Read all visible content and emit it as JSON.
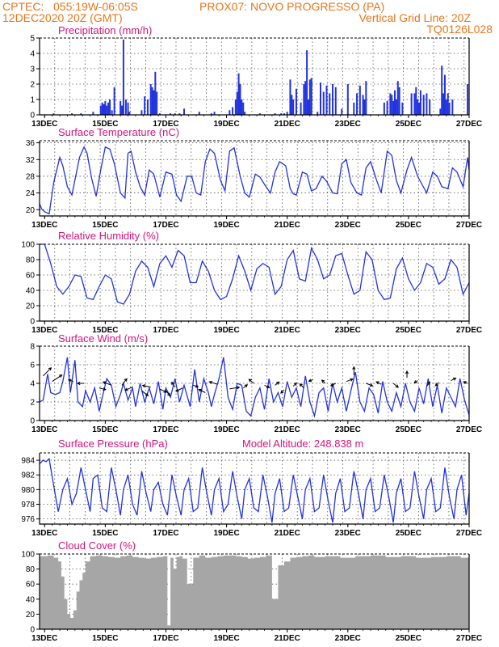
{
  "header": {
    "line1_left": "CPTEC:   055:19W-06:05S",
    "line1_right": "PROX07: NOVO PROGRESSO (PA)",
    "line2_left": "12DEC2020 20Z (GMT)",
    "line2_right": "Vertical Grid Line: 20Z",
    "line3_right": "TQ0126L028"
  },
  "colors": {
    "header": "#e8761b",
    "title": "#d4147c",
    "series": "#2233dd",
    "cloud": "#a6a6a6"
  },
  "x_axis": {
    "labels": [
      "13DEC",
      "15DEC",
      "17DEC",
      "19DEC",
      "21DEC",
      "23DEC",
      "25DEC",
      "27DEC"
    ],
    "start_day": 12.833,
    "end_day": 27.0
  },
  "chart_data": [
    {
      "id": "precip",
      "type": "bar",
      "title": "Precipitation (mm/h)",
      "ylim": [
        0,
        5
      ],
      "yticks": [
        0,
        1,
        2,
        3,
        4,
        5
      ],
      "x": [
        13.3,
        13.9,
        14.2,
        14.6,
        14.85,
        14.9,
        14.95,
        15.0,
        15.05,
        15.1,
        15.15,
        15.22,
        15.3,
        15.5,
        15.55,
        15.6,
        15.68,
        15.75,
        15.8,
        16.2,
        16.3,
        16.4,
        16.5,
        16.55,
        16.6,
        16.65,
        16.7,
        16.8,
        17.15,
        17.3,
        17.45,
        17.6,
        18.1,
        18.5,
        18.6,
        19.1,
        19.2,
        19.3,
        19.35,
        19.4,
        19.45,
        19.5,
        19.55,
        19.6,
        20.1,
        20.6,
        20.8,
        20.9,
        21.0,
        21.1,
        21.15,
        21.2,
        21.3,
        21.45,
        21.55,
        21.6,
        21.65,
        21.7,
        21.75,
        21.8,
        22.0,
        22.1,
        22.2,
        22.3,
        22.4,
        22.5,
        22.6,
        22.8,
        23.0,
        23.2,
        23.3,
        23.4,
        23.5,
        23.55,
        23.6,
        24.2,
        24.3,
        24.4,
        24.45,
        24.5,
        24.55,
        24.6,
        24.65,
        24.7,
        24.8,
        25.1,
        25.2,
        25.25,
        25.3,
        25.35,
        25.4,
        25.5,
        25.6,
        25.7,
        26.05,
        26.1,
        26.15,
        26.2,
        26.25,
        26.3,
        26.35,
        26.45,
        26.95
      ],
      "values": [
        0.1,
        0.1,
        0.1,
        0.2,
        0.6,
        0.8,
        0.7,
        0.9,
        0.6,
        0.8,
        1.0,
        0.3,
        1.8,
        0.9,
        0.6,
        4.9,
        1.0,
        0.8,
        0.2,
        0.3,
        1.2,
        1.0,
        2.0,
        1.8,
        1.6,
        2.8,
        1.5,
        0.1,
        0.1,
        0.1,
        0.1,
        0.4,
        0.2,
        0.1,
        0.2,
        0.3,
        0.5,
        1.0,
        1.5,
        2.7,
        2.0,
        1.0,
        0.8,
        0.2,
        0.1,
        0.1,
        0.1,
        0.1,
        0.2,
        2.3,
        1.3,
        1.0,
        1.7,
        0.8,
        2.0,
        2.2,
        4.2,
        1.0,
        2.3,
        2.4,
        0.2,
        2.1,
        1.5,
        1.9,
        1.4,
        2.0,
        1.8,
        0.4,
        2.0,
        0.8,
        1.4,
        1.9,
        1.3,
        1.0,
        2.2,
        0.8,
        0.9,
        1.4,
        1.3,
        0.9,
        1.6,
        1.0,
        2.2,
        1.8,
        0.8,
        1.4,
        1.4,
        1.8,
        1.0,
        0.8,
        1.6,
        1.3,
        1.4,
        1.0,
        0.4,
        3.2,
        1.4,
        2.6,
        1.0,
        1.4,
        0.8,
        1.0,
        2.0
      ]
    },
    {
      "id": "temp",
      "type": "line",
      "title": "Surface Temperature (nC)",
      "ylim": [
        18.5,
        36.5
      ],
      "yticks": [
        20,
        24,
        28,
        32,
        36
      ],
      "x": [
        12.83,
        12.9,
        13.0,
        13.15,
        13.3,
        13.5,
        13.6,
        13.75,
        13.9,
        14.15,
        14.3,
        14.4,
        14.55,
        14.7,
        14.85,
        15.0,
        15.15,
        15.3,
        15.5,
        15.65,
        15.75,
        15.85,
        16.0,
        16.15,
        16.3,
        16.45,
        16.6,
        16.8,
        17.0,
        17.2,
        17.35,
        17.5,
        17.7,
        17.85,
        18.0,
        18.15,
        18.3,
        18.45,
        18.6,
        18.8,
        18.95,
        19.1,
        19.25,
        19.45,
        19.6,
        19.75,
        19.95,
        20.1,
        20.3,
        20.45,
        20.6,
        20.75,
        20.95,
        21.1,
        21.2,
        21.3,
        21.5,
        21.65,
        21.8,
        21.95,
        22.15,
        22.3,
        22.5,
        22.65,
        22.8,
        22.95,
        23.1,
        23.3,
        23.45,
        23.6,
        23.75,
        23.95,
        24.1,
        24.3,
        24.45,
        24.6,
        24.75,
        24.95,
        25.1,
        25.3,
        25.45,
        25.6,
        25.8,
        25.95,
        26.1,
        26.3,
        26.45,
        26.6,
        26.8,
        26.95,
        27.0
      ],
      "values": [
        21.5,
        20.2,
        19.5,
        19.0,
        26.5,
        32.5,
        30.5,
        25.5,
        23.5,
        32.5,
        35.0,
        33.5,
        27.5,
        23.2,
        29.5,
        35.0,
        34.5,
        31.0,
        24.0,
        22.8,
        33.5,
        34.0,
        29.0,
        25.5,
        23.5,
        29.5,
        28.5,
        23.0,
        29.0,
        28.5,
        23.5,
        22.0,
        28.0,
        28.0,
        24.0,
        23.5,
        31.5,
        34.5,
        33.5,
        27.0,
        24.5,
        34.0,
        34.8,
        28.0,
        24.0,
        23.0,
        28.5,
        27.8,
        25.5,
        24.0,
        29.0,
        31.5,
        30.5,
        25.0,
        23.8,
        23.5,
        29.0,
        28.5,
        24.5,
        25.0,
        28.0,
        26.8,
        24.0,
        23.8,
        31.0,
        32.0,
        26.5,
        24.0,
        23.5,
        30.0,
        31.5,
        27.0,
        24.0,
        34.0,
        33.0,
        27.0,
        24.0,
        29.5,
        32.5,
        28.0,
        26.0,
        24.0,
        29.0,
        28.0,
        25.5,
        25.0,
        30.0,
        29.0,
        25.5,
        32.5,
        29.5
      ]
    },
    {
      "id": "rh",
      "type": "line",
      "title": "Relative Humidity (%)",
      "ylim": [
        0,
        100
      ],
      "yticks": [
        0,
        20,
        40,
        60,
        80,
        100
      ],
      "x": [
        12.83,
        13.0,
        13.2,
        13.4,
        13.6,
        13.8,
        14.0,
        14.2,
        14.4,
        14.6,
        14.8,
        15.0,
        15.2,
        15.4,
        15.6,
        15.8,
        16.0,
        16.2,
        16.4,
        16.6,
        16.8,
        17.0,
        17.2,
        17.4,
        17.6,
        17.8,
        18.0,
        18.2,
        18.4,
        18.6,
        18.8,
        19.0,
        19.2,
        19.4,
        19.6,
        19.8,
        20.0,
        20.2,
        20.4,
        20.6,
        20.8,
        21.0,
        21.2,
        21.4,
        21.6,
        21.8,
        22.0,
        22.2,
        22.4,
        22.6,
        22.8,
        23.0,
        23.2,
        23.4,
        23.6,
        23.8,
        24.0,
        24.2,
        24.4,
        24.6,
        24.8,
        25.0,
        25.2,
        25.4,
        25.6,
        25.8,
        26.0,
        26.2,
        26.4,
        26.6,
        26.8,
        27.0
      ],
      "values": [
        100,
        100,
        75,
        45,
        35,
        45,
        60,
        58,
        30,
        28,
        45,
        60,
        55,
        25,
        22,
        35,
        65,
        78,
        70,
        45,
        75,
        85,
        70,
        92,
        85,
        50,
        50,
        78,
        65,
        40,
        28,
        32,
        55,
        85,
        65,
        40,
        68,
        75,
        70,
        35,
        45,
        80,
        92,
        55,
        52,
        95,
        80,
        55,
        60,
        85,
        88,
        60,
        35,
        40,
        90,
        80,
        40,
        28,
        30,
        68,
        82,
        55,
        40,
        50,
        75,
        70,
        48,
        55,
        80,
        70,
        35,
        50
      ]
    },
    {
      "id": "wind",
      "type": "line",
      "title": "Surface Wind (m/s)",
      "ylim": [
        0,
        8
      ],
      "yticks": [
        0,
        2,
        4,
        6,
        8
      ],
      "x": [
        12.83,
        12.95,
        13.1,
        13.2,
        13.35,
        13.5,
        13.6,
        13.75,
        13.85,
        14.0,
        14.1,
        14.25,
        14.35,
        14.5,
        14.65,
        14.8,
        14.9,
        15.05,
        15.2,
        15.35,
        15.5,
        15.6,
        15.75,
        15.9,
        16.0,
        16.15,
        16.3,
        16.45,
        16.6,
        16.75,
        16.9,
        17.0,
        17.15,
        17.3,
        17.45,
        17.6,
        17.8,
        17.95,
        18.1,
        18.25,
        18.4,
        18.5,
        18.6,
        18.75,
        18.9,
        19.05,
        19.2,
        19.35,
        19.5,
        19.65,
        19.8,
        19.95,
        20.1,
        20.25,
        20.4,
        20.55,
        20.7,
        20.85,
        21.0,
        21.15,
        21.3,
        21.45,
        21.6,
        21.75,
        21.9,
        22.05,
        22.2,
        22.35,
        22.5,
        22.65,
        22.8,
        22.95,
        23.1,
        23.25,
        23.4,
        23.55,
        23.7,
        23.85,
        24.0,
        24.15,
        24.3,
        24.45,
        24.6,
        24.75,
        24.9,
        25.05,
        25.2,
        25.35,
        25.5,
        25.65,
        25.8,
        25.95,
        26.1,
        26.25,
        26.4,
        26.55,
        26.7,
        26.85,
        27.0
      ],
      "values": [
        2.0,
        2.2,
        5.0,
        3.0,
        2.8,
        3.0,
        4.2,
        6.8,
        3.0,
        6.5,
        2.0,
        1.5,
        3.2,
        2.0,
        3.5,
        1.0,
        2.5,
        4.5,
        3.8,
        1.5,
        2.8,
        4.0,
        2.2,
        3.5,
        1.5,
        4.0,
        2.0,
        3.5,
        1.8,
        4.2,
        1.2,
        3.5,
        2.5,
        4.5,
        2.0,
        3.8,
        1.5,
        5.5,
        2.0,
        4.5,
        3.0,
        1.5,
        2.8,
        4.5,
        6.8,
        2.5,
        1.2,
        4.0,
        3.8,
        1.0,
        0.5,
        2.5,
        3.5,
        1.2,
        4.5,
        2.0,
        3.0,
        1.5,
        4.2,
        2.5,
        3.5,
        1.5,
        4.8,
        2.0,
        0.5,
        3.0,
        3.5,
        1.0,
        4.0,
        2.0,
        3.5,
        1.0,
        3.2,
        5.2,
        2.0,
        1.0,
        3.5,
        2.8,
        0.8,
        4.2,
        2.0,
        1.0,
        3.0,
        1.5,
        4.0,
        2.0,
        1.0,
        3.5,
        1.8,
        4.5,
        1.5,
        3.8,
        0.8,
        3.5,
        2.5,
        1.5,
        4.5,
        2.2,
        0.6
      ]
    },
    {
      "id": "pressure",
      "type": "line",
      "title": "Surface Pressure (hPa)",
      "subtitle": "Model Altitude: 248.838 m",
      "ylim": [
        975.3,
        985.0
      ],
      "yticks": [
        976,
        978,
        980,
        982,
        984
      ],
      "x": [
        12.83,
        12.95,
        13.05,
        13.15,
        13.3,
        13.45,
        13.6,
        13.75,
        13.9,
        14.05,
        14.2,
        14.35,
        14.5,
        14.6,
        14.75,
        14.9,
        15.05,
        15.2,
        15.35,
        15.5,
        15.6,
        15.75,
        15.9,
        16.05,
        16.2,
        16.35,
        16.5,
        16.6,
        16.75,
        16.9,
        17.05,
        17.2,
        17.35,
        17.5,
        17.6,
        17.75,
        17.9,
        18.05,
        18.2,
        18.35,
        18.5,
        18.6,
        18.75,
        18.9,
        19.05,
        19.2,
        19.35,
        19.5,
        19.6,
        19.75,
        19.9,
        20.05,
        20.2,
        20.35,
        20.5,
        20.6,
        20.75,
        20.9,
        21.05,
        21.2,
        21.35,
        21.5,
        21.6,
        21.75,
        21.9,
        22.05,
        22.2,
        22.35,
        22.5,
        22.6,
        22.75,
        22.9,
        23.05,
        23.2,
        23.35,
        23.5,
        23.6,
        23.75,
        23.9,
        24.05,
        24.2,
        24.35,
        24.5,
        24.6,
        24.75,
        24.9,
        25.05,
        25.2,
        25.35,
        25.5,
        25.6,
        25.75,
        25.9,
        26.05,
        26.2,
        26.35,
        26.5,
        26.6,
        26.75,
        26.9,
        27.0
      ],
      "values": [
        983.5,
        984.0,
        983.8,
        984.2,
        980.5,
        977.0,
        980.0,
        981.5,
        978.0,
        979.5,
        983.0,
        980.0,
        977.0,
        981.5,
        982.0,
        977.5,
        977.0,
        983.0,
        980.0,
        976.5,
        980.0,
        982.0,
        978.0,
        976.5,
        982.5,
        979.5,
        977.0,
        980.0,
        981.0,
        978.0,
        976.5,
        982.0,
        979.0,
        976.5,
        980.0,
        981.5,
        977.0,
        977.5,
        983.0,
        979.5,
        976.5,
        980.0,
        981.5,
        977.0,
        978.0,
        982.5,
        979.0,
        976.0,
        980.0,
        981.5,
        977.5,
        977.0,
        982.0,
        979.0,
        975.5,
        979.5,
        981.5,
        977.0,
        977.5,
        982.0,
        979.0,
        976.0,
        980.0,
        981.5,
        977.0,
        977.5,
        982.0,
        978.5,
        975.5,
        979.5,
        981.5,
        977.0,
        977.5,
        982.5,
        979.5,
        976.0,
        980.0,
        981.5,
        977.0,
        977.5,
        982.0,
        979.0,
        975.5,
        979.5,
        981.5,
        977.0,
        977.5,
        982.5,
        979.0,
        976.0,
        980.0,
        981.5,
        977.0,
        977.5,
        983.0,
        979.0,
        976.0,
        980.0,
        982.0,
        976.5,
        979.5
      ]
    },
    {
      "id": "cloud",
      "type": "bar",
      "title": "Cloud Cover (%)",
      "ylim": [
        0,
        100
      ],
      "yticks": [
        0,
        20,
        40,
        60,
        80,
        100
      ],
      "x": [
        12.85,
        13.0,
        13.2,
        13.4,
        13.5,
        13.6,
        13.7,
        13.8,
        13.9,
        14.0,
        14.1,
        14.2,
        14.3,
        14.4,
        14.6,
        14.8,
        15.0,
        15.2,
        15.4,
        15.6,
        15.8,
        16.0,
        16.2,
        16.4,
        16.6,
        16.8,
        17.0,
        17.1,
        17.2,
        17.3,
        17.4,
        17.5,
        17.6,
        17.8,
        18.0,
        18.2,
        18.4,
        18.6,
        18.8,
        19.0,
        19.2,
        19.4,
        19.6,
        19.8,
        20.0,
        20.2,
        20.4,
        20.6,
        20.8,
        21.0,
        21.2,
        21.4,
        21.6,
        21.8,
        22.0,
        22.5,
        23.0,
        23.5,
        24.0,
        24.5,
        25.0,
        25.5,
        26.0,
        26.5,
        26.95
      ],
      "values": [
        97,
        97,
        98,
        95,
        90,
        70,
        40,
        20,
        15,
        25,
        50,
        65,
        75,
        90,
        97,
        98,
        97,
        96,
        95,
        97,
        98,
        96,
        95,
        94,
        95,
        96,
        97,
        5,
        95,
        80,
        96,
        97,
        94,
        60,
        95,
        98,
        95,
        96,
        97,
        98,
        98,
        97,
        96,
        94,
        95,
        96,
        98,
        40,
        85,
        90,
        95,
        96,
        97,
        98,
        96,
        97,
        95,
        97,
        98,
        96,
        97,
        95,
        96,
        97,
        95
      ]
    }
  ],
  "wind_vectors": {
    "days": [
      12.95,
      13.25,
      13.95,
      14.3,
      14.8,
      15.2,
      15.55,
      15.9,
      16.2,
      16.5,
      16.8,
      17.0,
      17.3,
      17.55,
      17.9,
      18.3,
      18.7,
      19.1,
      19.55,
      19.9,
      20.25,
      20.6,
      20.9,
      21.2,
      21.55,
      21.85,
      22.25,
      22.6,
      22.95,
      23.2,
      23.6,
      24.1,
      24.5,
      24.95,
      25.3,
      25.6,
      26.0,
      26.4,
      26.95
    ],
    "levels": [
      4.8,
      4.2,
      4.2,
      4.0,
      3.5,
      3.8,
      3.8,
      3.6,
      3.2,
      3.6,
      3.4,
      3.2,
      3.6,
      3.5,
      3.8,
      3.0,
      3.9,
      3.4,
      3.5,
      4.0,
      3.8,
      3.8,
      3.3,
      3.7,
      3.5,
      4.4,
      4.0,
      4.0,
      4.2,
      4.9,
      4.0,
      3.9,
      4.0,
      4.6,
      4.3,
      3.7,
      4.1,
      4.3,
      4.0
    ],
    "dx": [
      10,
      12,
      -6,
      -8,
      8,
      -10,
      6,
      -9,
      8,
      -10,
      8,
      5,
      -4,
      -8,
      6,
      -8,
      -10,
      12,
      5,
      -6,
      6,
      5,
      -4,
      4,
      -5,
      -5,
      -4,
      -6,
      8,
      0,
      8,
      -6,
      6,
      0,
      -4,
      4,
      -4,
      6,
      -5
    ],
    "dy": [
      -10,
      -8,
      -2,
      0,
      2,
      -4,
      -8,
      4,
      6,
      -2,
      4,
      6,
      -6,
      4,
      2,
      -4,
      -3,
      -2,
      -4,
      -5,
      3,
      -4,
      4,
      -4,
      -5,
      2,
      -4,
      3,
      -3,
      -10,
      3,
      -3,
      5,
      -8,
      3,
      -5,
      4,
      -3,
      -2
    ]
  }
}
